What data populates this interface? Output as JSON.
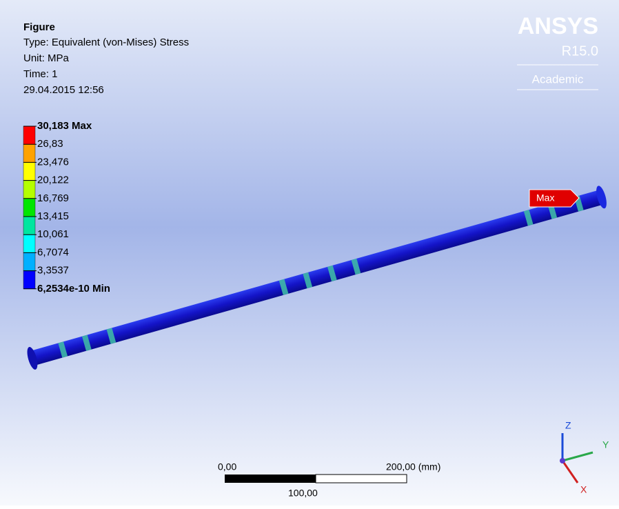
{
  "header": {
    "title": "Figure",
    "type": "Type: Equivalent (von-Mises) Stress",
    "unit": "Unit: MPa",
    "time": "Time: 1",
    "date": "29.04.2015 12:56"
  },
  "logo": {
    "brand": "ANSYS",
    "version": "R15.0",
    "edition": "Academic"
  },
  "legend": {
    "labels": [
      "30,183 Max",
      "26,83",
      "23,476",
      "20,122",
      "16,769",
      "13,415",
      "10,061",
      "6,7074",
      "3,3537",
      "6,2534e-10 Min"
    ],
    "colors": [
      "#ff0000",
      "#ffa200",
      "#ffff00",
      "#b4ff00",
      "#00e600",
      "#00e6a0",
      "#00ffff",
      "#00b0ff",
      "#0000ff"
    ]
  },
  "probe": {
    "label": "Max"
  },
  "scale": {
    "left": "0,00",
    "right": "200,00 (mm)",
    "middle": "100,00"
  },
  "triad": {
    "z": "Z",
    "y": "Y",
    "x": "X"
  }
}
